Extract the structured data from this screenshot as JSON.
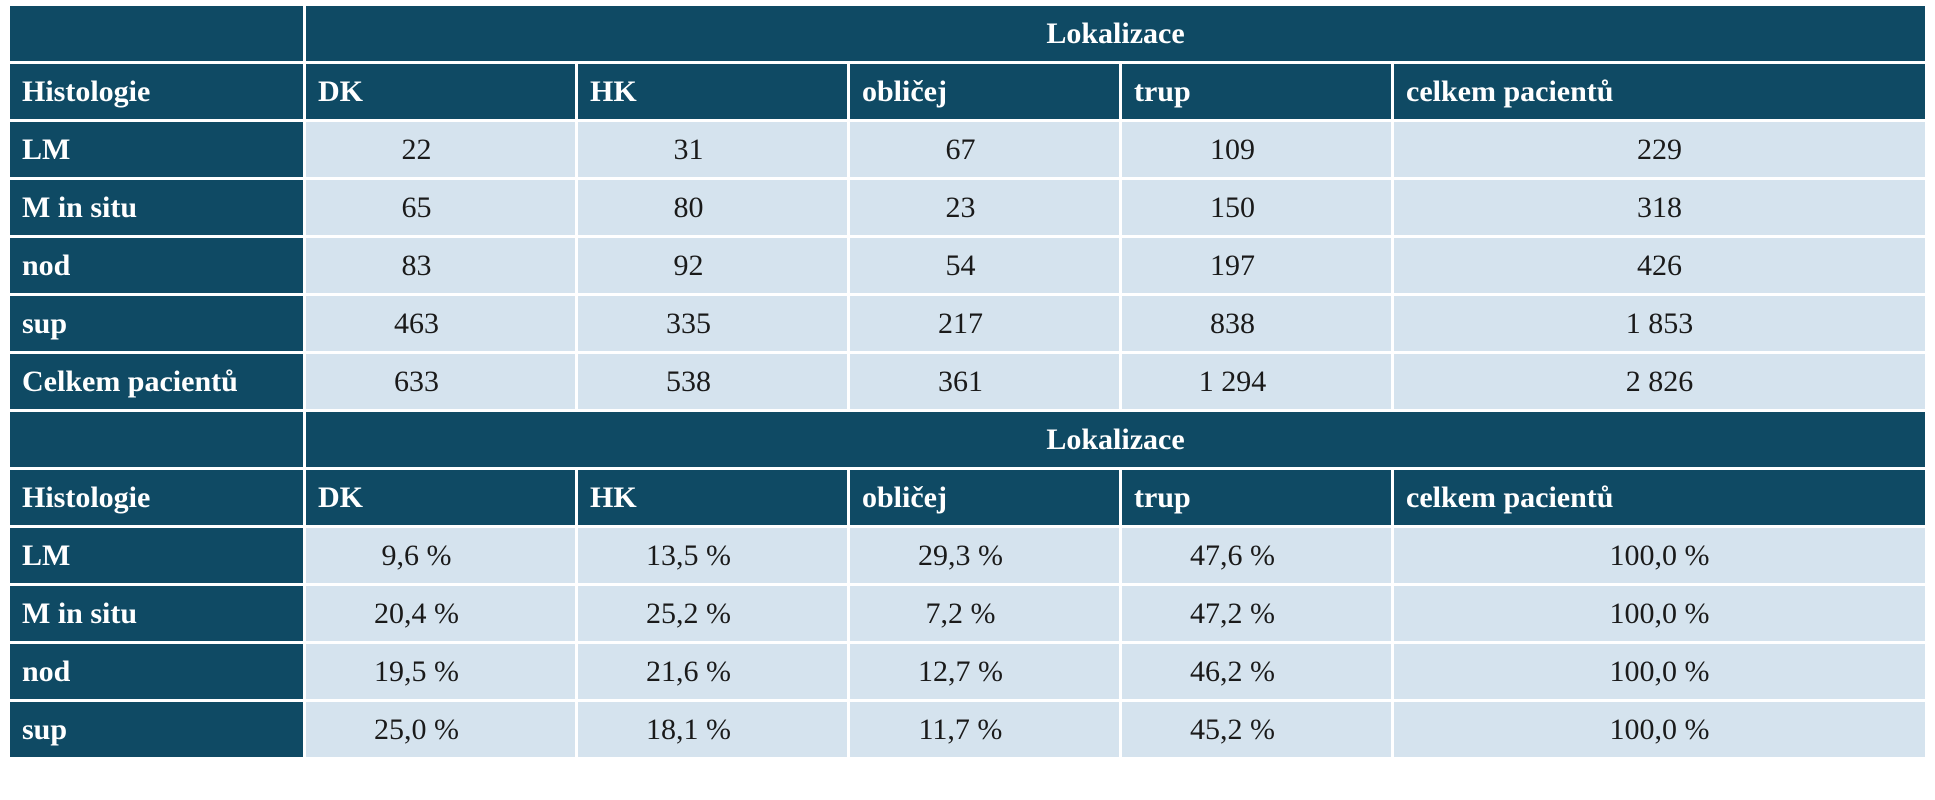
{
  "table1": {
    "group_header": "Lokalizace",
    "columns": [
      "Histologie",
      "DK",
      "HK",
      "obličej",
      "trup",
      "celkem pacientů"
    ],
    "rows": [
      {
        "label": "LM",
        "values": [
          "22",
          "31",
          "67",
          "109",
          "229"
        ]
      },
      {
        "label": "M in situ",
        "values": [
          "65",
          "80",
          "23",
          "150",
          "318"
        ]
      },
      {
        "label": "nod",
        "values": [
          "83",
          "92",
          "54",
          "197",
          "426"
        ]
      },
      {
        "label": "sup",
        "values": [
          "463",
          "335",
          "217",
          "838",
          "1 853"
        ]
      },
      {
        "label": "Celkem pacientů",
        "values": [
          "633",
          "538",
          "361",
          "1 294",
          "2 826"
        ]
      }
    ]
  },
  "table2": {
    "group_header": "Lokalizace",
    "columns": [
      "Histologie",
      "DK",
      "HK",
      "obličej",
      "trup",
      "celkem pacientů"
    ],
    "rows": [
      {
        "label": "LM",
        "values": [
          "9,6 %",
          "13,5 %",
          "29,3 %",
          "47,6 %",
          "100,0 %"
        ]
      },
      {
        "label": "M in situ",
        "values": [
          "20,4 %",
          "25,2 %",
          "7,2 %",
          "47,2 %",
          "100,0 %"
        ]
      },
      {
        "label": "nod",
        "values": [
          "19,5 %",
          "21,6 %",
          "12,7 %",
          "46,2 %",
          "100,0 %"
        ]
      },
      {
        "label": "sup",
        "values": [
          "25,0 %",
          "18,1 %",
          "11,7 %",
          "45,2 %",
          "100,0 %"
        ]
      }
    ]
  },
  "colors": {
    "header_bg": "#0f4a64",
    "cell_bg": "#d5e3ee",
    "header_text": "#ffffff"
  }
}
